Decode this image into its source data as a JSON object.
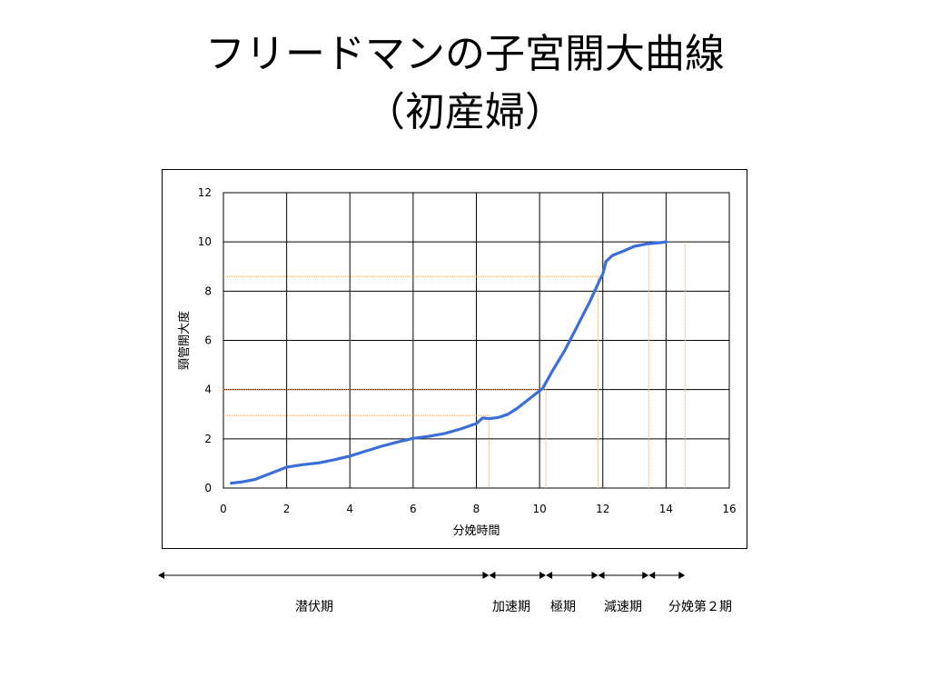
{
  "title_line1": "フリードマンの子宮開大曲線",
  "title_line2": "（初産婦）",
  "chart_data": {
    "type": "line",
    "xlabel": "分娩時間",
    "ylabel": "頸管開大度",
    "xlim": [
      0,
      16
    ],
    "ylim": [
      0,
      12
    ],
    "xticks": [
      0,
      2,
      4,
      6,
      8,
      10,
      12,
      14,
      16
    ],
    "yticks": [
      0,
      2,
      4,
      6,
      8,
      10,
      12
    ],
    "grid": true,
    "series": [
      {
        "color": "#3b6fd8",
        "x": [
          0.25,
          0.6,
          1.0,
          1.5,
          2.0,
          2.5,
          3.0,
          3.5,
          4.0,
          4.5,
          5.0,
          5.5,
          6.0,
          6.5,
          7.0,
          7.5,
          8.0,
          8.2,
          8.4,
          8.7,
          9.0,
          9.3,
          9.6,
          9.9,
          10.1,
          10.4,
          10.8,
          11.2,
          11.6,
          11.9,
          12.0,
          12.1,
          12.3,
          12.6,
          13.0,
          13.4,
          13.8,
          14.0
        ],
        "y": [
          0.2,
          0.25,
          0.35,
          0.6,
          0.85,
          0.95,
          1.02,
          1.15,
          1.3,
          1.5,
          1.7,
          1.87,
          2.02,
          2.1,
          2.22,
          2.4,
          2.62,
          2.85,
          2.82,
          2.87,
          3.0,
          3.25,
          3.55,
          3.85,
          4.05,
          4.75,
          5.6,
          6.6,
          7.6,
          8.45,
          8.7,
          9.2,
          9.45,
          9.6,
          9.82,
          9.92,
          9.97,
          10.0
        ]
      }
    ],
    "guide_color": "#e8a060",
    "guides_horizontal": [
      {
        "y": 8.6,
        "x_end": 11.85
      },
      {
        "y": 4.0,
        "x_end": 10.2
      },
      {
        "y": 2.95,
        "x_end": 8.4
      }
    ],
    "guides_vertical": [
      {
        "x": 8.4,
        "y_top": 2.95
      },
      {
        "x": 10.2,
        "y_top": 4.0
      },
      {
        "x": 11.85,
        "y_top": 8.6
      },
      {
        "x": 13.45,
        "y_top": 10.0
      },
      {
        "x": 14.6,
        "y_top": 10.0
      }
    ]
  },
  "phase_bar": {
    "arrows": [
      {
        "from": 0.0,
        "to": 8.4
      },
      {
        "from": 8.4,
        "to": 10.2
      },
      {
        "from": 10.2,
        "to": 11.85
      },
      {
        "from": 11.85,
        "to": 13.45
      },
      {
        "from": 13.45,
        "to": 14.6
      }
    ],
    "labels": [
      "潜伏期",
      "加速期",
      "極期",
      "減速期",
      "分娩第２期"
    ]
  }
}
